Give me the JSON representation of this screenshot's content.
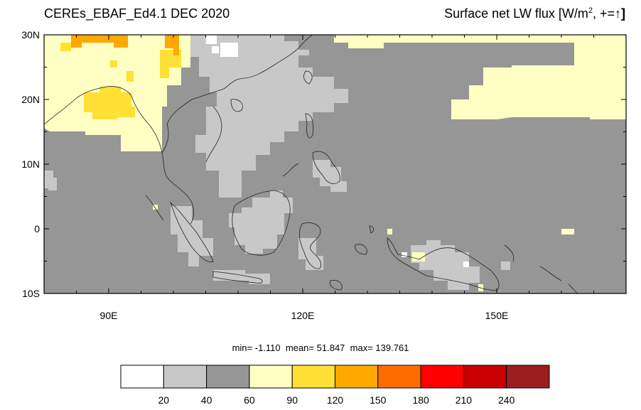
{
  "title": {
    "left": "CEREs_EBAF_Ed4.1 DEC 2020",
    "right_prefix": "Surface net LW flux [W/m",
    "right_sup": "2",
    "right_suffix": ", +=",
    "right_arrow": "↑",
    "right_bracket": "]"
  },
  "axes": {
    "lon_range": [
      80,
      170
    ],
    "lat_range": [
      -10,
      30
    ],
    "lon_ticks": [
      {
        "value": 90,
        "label": "90E"
      },
      {
        "value": 120,
        "label": "120E"
      },
      {
        "value": 150,
        "label": "150E"
      }
    ],
    "lat_ticks": [
      {
        "value": 30,
        "label": "30N"
      },
      {
        "value": 20,
        "label": "20N"
      },
      {
        "value": 10,
        "label": "10N"
      },
      {
        "value": 0,
        "label": "0"
      },
      {
        "value": -10,
        "label": "10S"
      }
    ]
  },
  "stats": {
    "min_label": "min=",
    "min": "-1.110",
    "mean_label": "mean=",
    "mean": "51.847",
    "max_label": "max=",
    "max": "139.761"
  },
  "colorbar": {
    "levels": [
      "20",
      "40",
      "60",
      "90",
      "120",
      "150",
      "180",
      "210",
      "240"
    ],
    "colors": [
      "#ffffff",
      "#c8c8c8",
      "#969696",
      "#ffffc4",
      "#ffe034",
      "#ffa800",
      "#ff6c00",
      "#ff0000",
      "#c80000",
      "#9a2020"
    ]
  },
  "map_data": {
    "background_value_color": "#969696",
    "regions": [
      {
        "name": "india-light-yellow",
        "color": "#ffffc4",
        "lon": [
          80,
          98
        ],
        "lat": [
          13,
          30
        ]
      },
      {
        "name": "indochina-light-yellow",
        "color": "#ffffc4",
        "lon": [
          98,
          103
        ],
        "lat": [
          13,
          30
        ]
      },
      {
        "name": "pacific-light-yellow",
        "color": "#ffffc4",
        "lon": [
          148,
          170
        ],
        "lat": [
          17,
          30
        ]
      },
      {
        "name": "south-china-light-gray",
        "color": "#c8c8c8",
        "lon": [
          105,
          116
        ],
        "lat": [
          5,
          28
        ]
      },
      {
        "name": "borneo-light-gray",
        "color": "#c8c8c8",
        "lon": [
          109,
          119
        ],
        "lat": [
          -4,
          6
        ]
      },
      {
        "name": "new-guinea-light-gray",
        "color": "#c8c8c8",
        "lon": [
          137,
          148
        ],
        "lat": [
          -9,
          -2
        ]
      },
      {
        "name": "bay-yellow",
        "color": "#ffe034",
        "lon": [
          87,
          93
        ],
        "lat": [
          18,
          22
        ]
      },
      {
        "name": "nw-orange",
        "color": "#ffa800",
        "lon": [
          85,
          95
        ],
        "lat": [
          28,
          30
        ]
      },
      {
        "name": "ne-orange",
        "color": "#ffa800",
        "lon": [
          99,
          102
        ],
        "lat": [
          26,
          30
        ]
      }
    ]
  }
}
